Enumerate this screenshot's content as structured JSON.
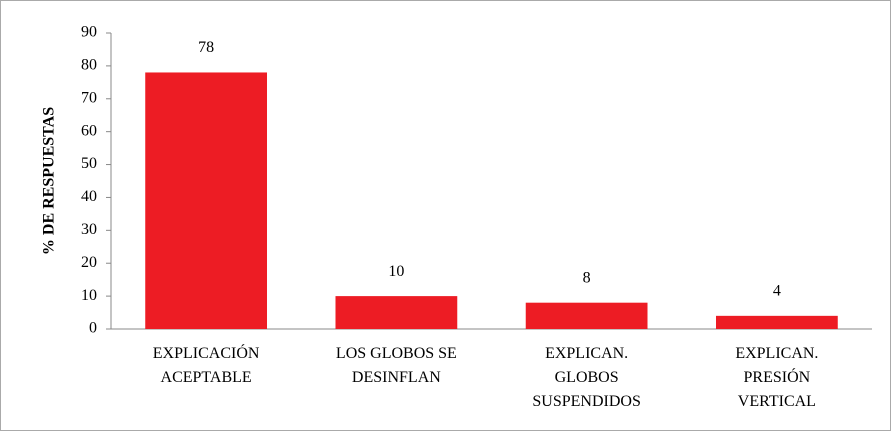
{
  "chart_data": {
    "type": "bar",
    "y_label": "% DE RESPUESTAS",
    "categories": [
      [
        "EXPLICACIÓN",
        "ACEPTABLE"
      ],
      [
        "LOS GLOBOS SE",
        "DESINFLAN"
      ],
      [
        "EXPLICAN.",
        "GLOBOS",
        "SUSPENDIDOS"
      ],
      [
        "EXPLICAN.",
        "PRESIÓN",
        "VERTICAL"
      ]
    ],
    "values": [
      78,
      10,
      8,
      4
    ],
    "color": "#ed1c24",
    "ylim": [
      0,
      90
    ],
    "yticks": [
      0,
      10,
      20,
      30,
      40,
      50,
      60,
      70,
      80,
      90
    ],
    "grid": false
  }
}
